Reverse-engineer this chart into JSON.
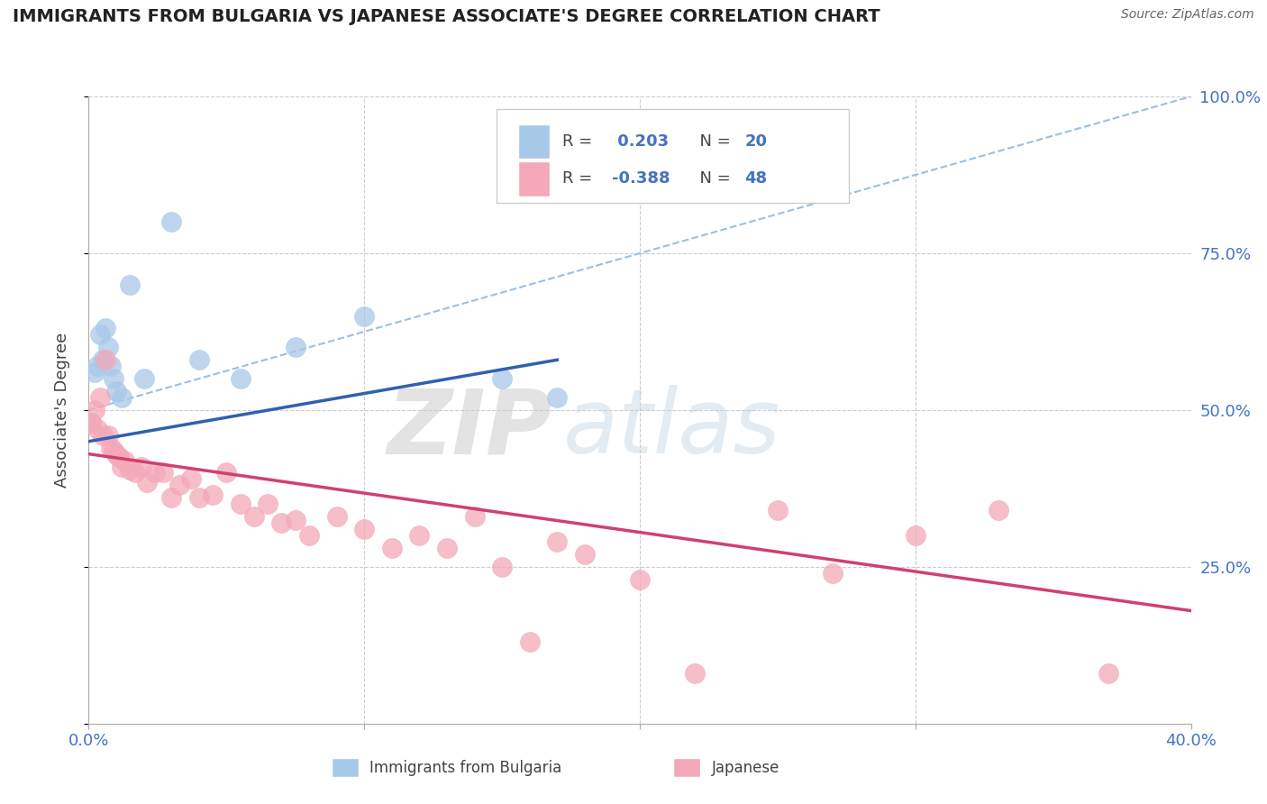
{
  "title": "IMMIGRANTS FROM BULGARIA VS JAPANESE ASSOCIATE'S DEGREE CORRELATION CHART",
  "source": "Source: ZipAtlas.com",
  "ylabel": "Associate's Degree",
  "r_bulgaria": 0.203,
  "n_bulgaria": 20,
  "r_japanese": -0.388,
  "n_japanese": 48,
  "xlim": [
    0.0,
    40.0
  ],
  "ylim": [
    0.0,
    100.0
  ],
  "blue_color": "#a8c8e8",
  "pink_color": "#f4a8b8",
  "blue_line_color": "#3060b0",
  "pink_line_color": "#d04070",
  "dashed_line_color": "#90b8e0",
  "legend_blue_label": "Immigrants from Bulgaria",
  "legend_pink_label": "Japanese",
  "watermark_zip": "ZIP",
  "watermark_atlas": "atlas",
  "bulgaria_x": [
    0.1,
    0.2,
    0.3,
    0.4,
    0.5,
    0.6,
    0.7,
    0.8,
    0.9,
    1.0,
    1.2,
    1.5,
    2.0,
    3.0,
    4.0,
    5.5,
    7.5,
    10.0,
    15.0,
    17.0
  ],
  "bulgaria_y": [
    48.0,
    56.0,
    57.0,
    62.0,
    58.0,
    63.0,
    60.0,
    57.0,
    55.0,
    53.0,
    52.0,
    70.0,
    55.0,
    80.0,
    58.0,
    55.0,
    60.0,
    65.0,
    55.0,
    52.0
  ],
  "japanese_x": [
    0.1,
    0.2,
    0.3,
    0.4,
    0.5,
    0.6,
    0.7,
    0.8,
    0.9,
    1.0,
    1.1,
    1.2,
    1.3,
    1.5,
    1.7,
    1.9,
    2.1,
    2.4,
    2.7,
    3.0,
    3.3,
    3.7,
    4.0,
    4.5,
    5.0,
    5.5,
    6.0,
    6.5,
    7.0,
    7.5,
    8.0,
    9.0,
    10.0,
    11.0,
    12.0,
    13.0,
    14.0,
    15.0,
    16.0,
    17.0,
    18.0,
    20.0,
    22.0,
    25.0,
    27.0,
    30.0,
    33.0,
    37.0
  ],
  "japanese_y": [
    48.0,
    50.0,
    47.0,
    52.0,
    46.0,
    58.0,
    46.0,
    44.0,
    43.5,
    43.0,
    42.5,
    41.0,
    42.0,
    40.5,
    40.0,
    41.0,
    38.5,
    40.0,
    40.0,
    36.0,
    38.0,
    39.0,
    36.0,
    36.5,
    40.0,
    35.0,
    33.0,
    35.0,
    32.0,
    32.5,
    30.0,
    33.0,
    31.0,
    28.0,
    30.0,
    28.0,
    33.0,
    25.0,
    13.0,
    29.0,
    27.0,
    23.0,
    8.0,
    34.0,
    24.0,
    30.0,
    34.0,
    8.0
  ]
}
